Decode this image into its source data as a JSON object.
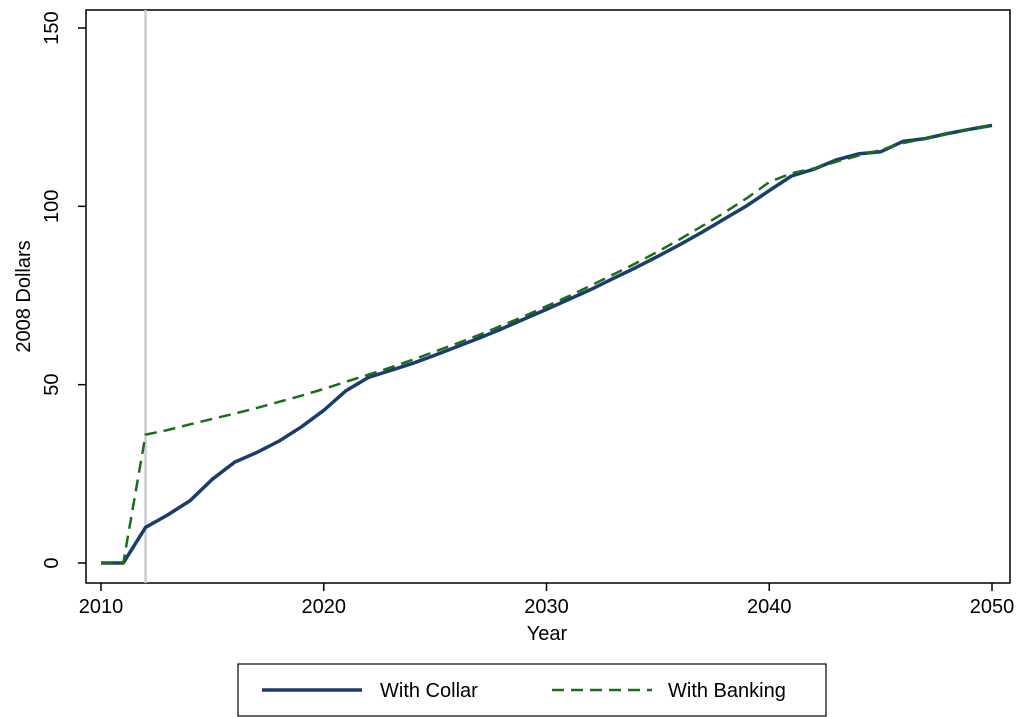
{
  "chart_data": {
    "type": "line",
    "title": "",
    "xlabel": "Year",
    "ylabel": "2008 Dollars",
    "xlim": [
      2010,
      2050
    ],
    "ylim": [
      0,
      150
    ],
    "xticks": [
      2010,
      2020,
      2030,
      2040,
      2050
    ],
    "yticks": [
      0,
      50,
      100,
      150
    ],
    "xtick_labels": [
      "2010",
      "2020",
      "2030",
      "2040",
      "2050"
    ],
    "ytick_labels": [
      "0",
      "50",
      "100",
      "150"
    ],
    "reference_line": {
      "x": 2012,
      "color": "#cccccc"
    },
    "grid": false,
    "legend_position": "bottom",
    "x": [
      2010,
      2011,
      2012,
      2013,
      2014,
      2015,
      2016,
      2017,
      2018,
      2019,
      2020,
      2021,
      2022,
      2023,
      2024,
      2025,
      2026,
      2027,
      2028,
      2029,
      2030,
      2031,
      2032,
      2033,
      2034,
      2035,
      2036,
      2037,
      2038,
      2039,
      2040,
      2041,
      2042,
      2043,
      2044,
      2045,
      2046,
      2047,
      2048,
      2049,
      2050
    ],
    "series": [
      {
        "name": "With Collar",
        "color": "#1a3d6b",
        "style": "solid",
        "values": [
          0,
          0,
          10,
          13.5,
          17.5,
          23.5,
          28.3,
          31,
          34.2,
          38.2,
          42.8,
          48.3,
          52,
          54,
          56,
          58.3,
          60.7,
          63.1,
          65.7,
          68.4,
          71.1,
          73.9,
          76.7,
          79.8,
          82.8,
          86,
          89.3,
          92.8,
          96.5,
          100.2,
          104.4,
          108.5,
          110.4,
          113,
          114.7,
          115.3,
          118.2,
          119,
          120.4,
          121.6,
          122.7
        ]
      },
      {
        "name": "With Banking",
        "color": "#1a6e1a",
        "style": "dashed",
        "values": [
          0,
          0,
          36,
          37.3,
          38.9,
          40.4,
          41.9,
          43.5,
          45.2,
          46.9,
          48.8,
          50.8,
          52.8,
          54.8,
          57,
          59.3,
          61.6,
          64,
          66.6,
          69.2,
          72,
          74.8,
          77.8,
          80.9,
          84,
          87.3,
          90.8,
          94.5,
          98.3,
          102.3,
          106.8,
          109.3,
          110.6,
          112.5,
          114.2,
          115.8,
          117.7,
          119,
          120.3,
          121.5,
          122.7
        ]
      }
    ]
  }
}
